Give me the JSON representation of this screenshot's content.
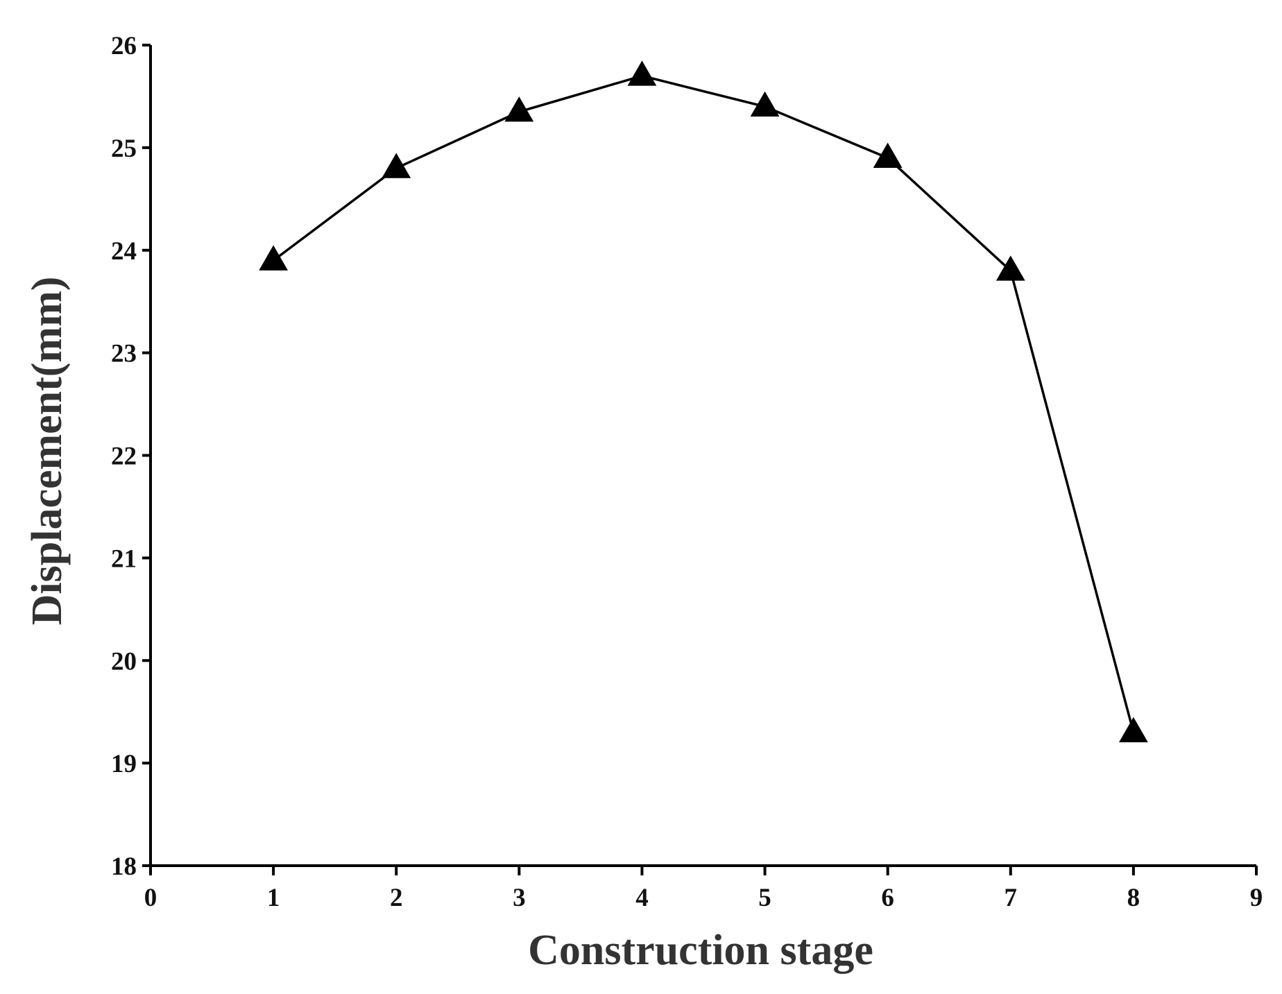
{
  "chart_data": {
    "type": "line",
    "x_label": "Construction stage",
    "y_label": "Displacement(mm)",
    "x": [
      1,
      2,
      3,
      4,
      5,
      6,
      7,
      8
    ],
    "series": [
      {
        "name": "Displacement",
        "color": "#000000",
        "values": [
          23.9,
          24.8,
          25.35,
          25.7,
          25.4,
          24.9,
          23.8,
          19.3
        ]
      }
    ],
    "xlim": [
      0,
      9
    ],
    "xticks": [
      0,
      1,
      2,
      3,
      4,
      5,
      6,
      7,
      8,
      9
    ],
    "ylim": [
      18,
      26
    ],
    "yticks": [
      18,
      19,
      20,
      21,
      22,
      23,
      24,
      25,
      26
    ],
    "marker": "triangle",
    "grid": false,
    "legend": false
  }
}
